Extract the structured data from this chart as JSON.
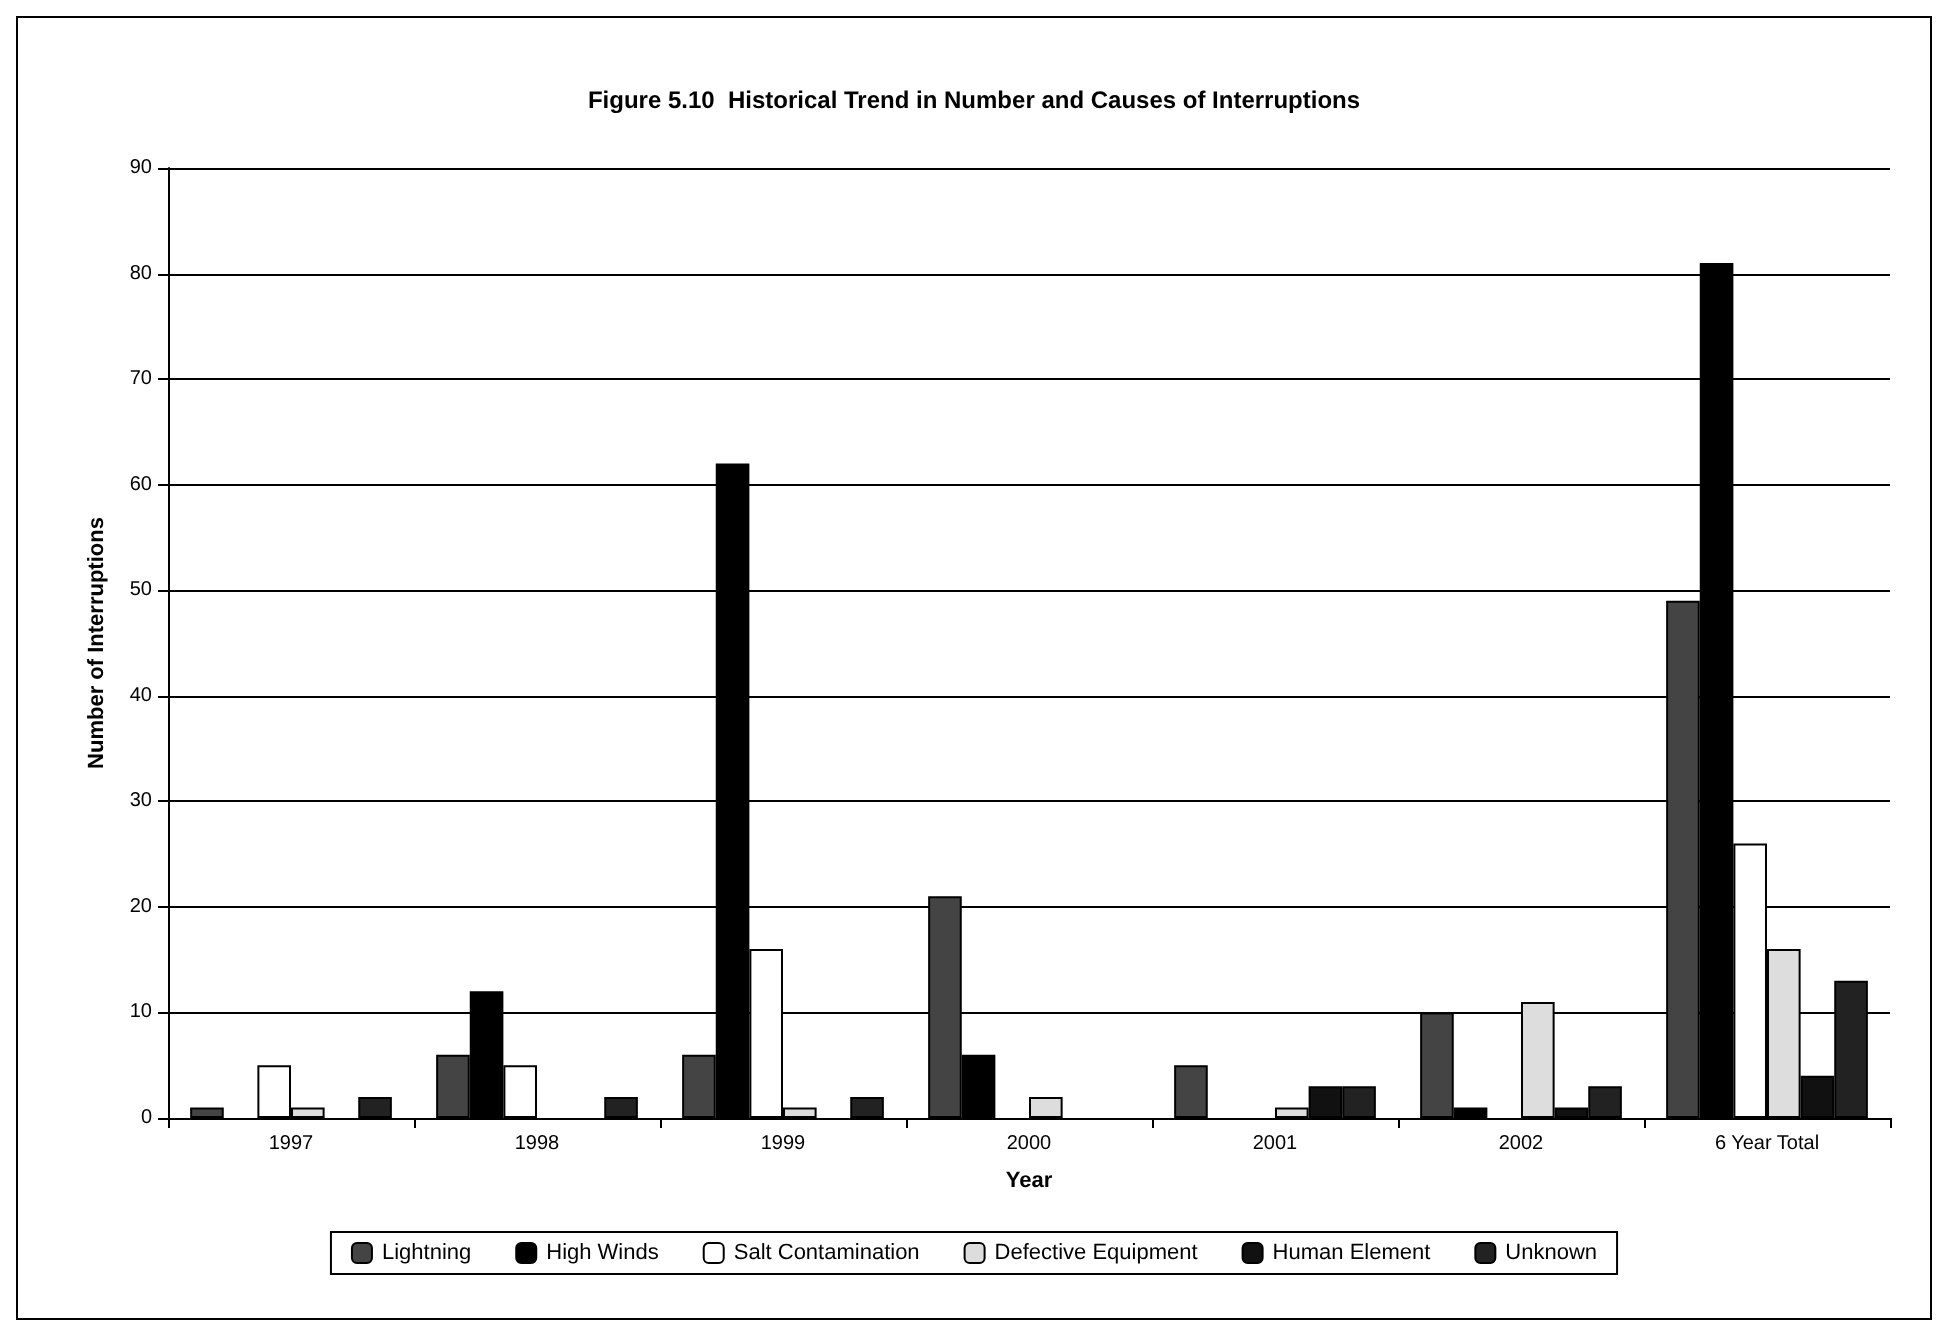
{
  "chart_data": {
    "type": "bar",
    "title": "Figure 5.10  Historical Trend in Number and Causes of Interruptions",
    "xlabel": "Year",
    "ylabel": "Number of Interruptions",
    "categories": [
      "1997",
      "1998",
      "1999",
      "2000",
      "2001",
      "2002",
      "6 Year Total"
    ],
    "series": [
      {
        "name": "Lightning",
        "color": "#444444",
        "values": [
          1,
          6,
          6,
          21,
          5,
          10,
          49
        ]
      },
      {
        "name": "High Winds",
        "color": "#000000",
        "values": [
          0,
          12,
          62,
          6,
          0,
          1,
          81
        ]
      },
      {
        "name": "Salt Contamination",
        "color": "#ffffff",
        "values": [
          5,
          5,
          16,
          0,
          0,
          0,
          26
        ]
      },
      {
        "name": "Defective Equipment",
        "color": "#dddddd",
        "values": [
          1,
          0,
          1,
          2,
          1,
          11,
          16
        ]
      },
      {
        "name": "Human Element",
        "color": "#111111",
        "values": [
          0,
          0,
          0,
          0,
          3,
          1,
          4
        ]
      },
      {
        "name": "Unknown",
        "color": "#222222",
        "values": [
          2,
          2,
          2,
          0,
          3,
          3,
          13
        ]
      }
    ],
    "ylim": [
      0,
      90
    ],
    "yticks": [
      0,
      10,
      20,
      30,
      40,
      50,
      60,
      70,
      80,
      90
    ],
    "grid": "y",
    "legend": "bottom"
  }
}
